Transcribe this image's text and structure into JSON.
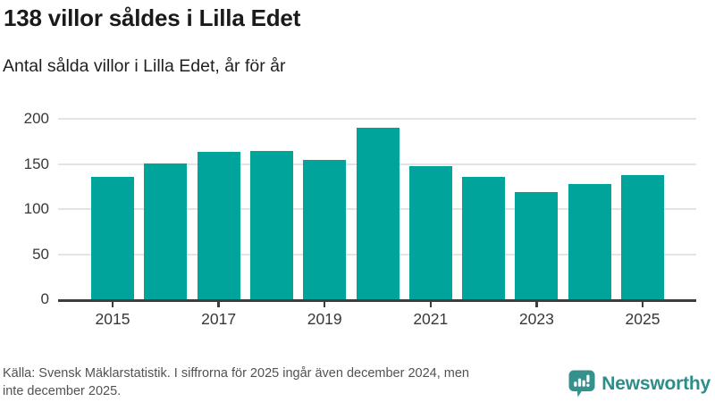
{
  "header": {
    "title": "138 villor såldes i Lilla Edet",
    "subtitle": "Antal sålda villor i Lilla Edet, år för år"
  },
  "chart_data": {
    "type": "bar",
    "title": "138 villor såldes i Lilla Edet",
    "subtitle": "Antal sålda villor i Lilla Edet, år för år",
    "categories": [
      "2015",
      "2016",
      "2017",
      "2018",
      "2019",
      "2020",
      "2021",
      "2022",
      "2023",
      "2024",
      "2025"
    ],
    "values": [
      136,
      151,
      163,
      164,
      154,
      190,
      148,
      136,
      119,
      128,
      138
    ],
    "xlabel": "",
    "ylabel": "",
    "ylim": [
      0,
      200
    ],
    "yticks": [
      0,
      50,
      100,
      150,
      200
    ],
    "xtick_labels": [
      "2015",
      "2017",
      "2019",
      "2021",
      "2023",
      "2025"
    ],
    "grid": true,
    "legend": false,
    "bar_color": "#00a49b"
  },
  "footer": {
    "source_lines": [
      "Källa: Svensk Mäklarstatistik. I siffrorna för 2025 ingår även december 2024, men",
      "inte december 2025."
    ],
    "brand": {
      "name": "Newsworthy",
      "icon": "chart-speech-bubble-icon",
      "color": "#2e8d89"
    }
  },
  "colors": {
    "bar": "#00a49b",
    "axis": "#3d3d3d",
    "gridline": "#e4e4e4",
    "title_text": "#1a1a1a",
    "source_text": "#525252",
    "brand_teal": "#2e8d89"
  }
}
